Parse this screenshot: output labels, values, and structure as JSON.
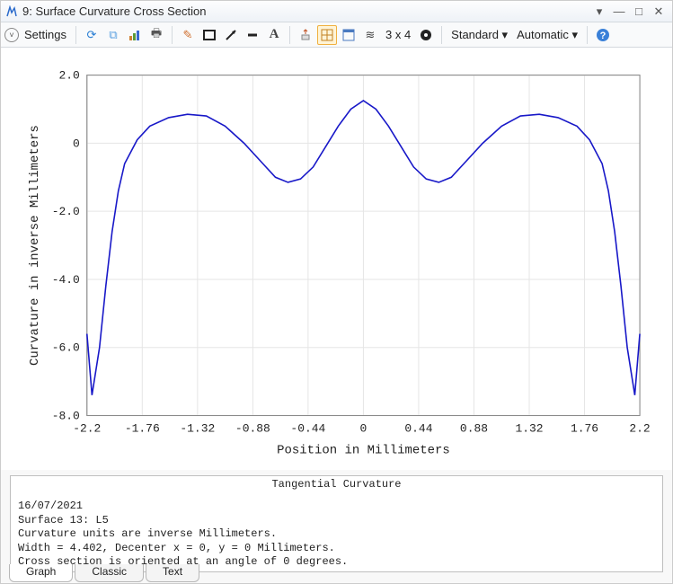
{
  "window": {
    "title": "9: Surface Curvature Cross Section"
  },
  "toolbar": {
    "settings_label": "Settings",
    "grid_label": "3 x 4",
    "dropdown1": "Standard",
    "dropdown2": "Automatic"
  },
  "chart": {
    "type": "line",
    "xlabel": "Position in Millimeters",
    "ylabel": "Curvature in inverse Millimeters",
    "xlim": [
      -2.2,
      2.2
    ],
    "ylim": [
      -8.0,
      2.0
    ],
    "xticks": [
      -2.2,
      -1.76,
      -1.32,
      -0.88,
      -0.44,
      0,
      0.44,
      0.88,
      1.32,
      1.76,
      2.2
    ],
    "xtick_labels": [
      "-2.2",
      "-1.76",
      "-1.32",
      "-0.88",
      "-0.44",
      "0",
      "0.44",
      "0.88",
      "1.32",
      "1.76",
      "2.2"
    ],
    "yticks": [
      2.0,
      0,
      -2.0,
      -4.0,
      -6.0,
      -8.0
    ],
    "ytick_labels": [
      "2.0",
      "0",
      "-2.0",
      "-4.0",
      "-6.0",
      "-8.0"
    ],
    "grid_color": "#e5e5e5",
    "axis_color": "#888888",
    "background_color": "#ffffff",
    "line_color": "#1818c8",
    "line_width": 1.6,
    "label_fontsize": 14,
    "tick_fontsize": 13,
    "data": [
      [
        -2.2,
        -5.6
      ],
      [
        -2.16,
        -7.4
      ],
      [
        -2.1,
        -6.0
      ],
      [
        -2.05,
        -4.2
      ],
      [
        -2.0,
        -2.6
      ],
      [
        -1.95,
        -1.4
      ],
      [
        -1.9,
        -0.6
      ],
      [
        -1.8,
        0.1
      ],
      [
        -1.7,
        0.5
      ],
      [
        -1.55,
        0.75
      ],
      [
        -1.4,
        0.85
      ],
      [
        -1.25,
        0.8
      ],
      [
        -1.1,
        0.5
      ],
      [
        -0.95,
        0.0
      ],
      [
        -0.8,
        -0.6
      ],
      [
        -0.7,
        -1.0
      ],
      [
        -0.6,
        -1.15
      ],
      [
        -0.5,
        -1.05
      ],
      [
        -0.4,
        -0.7
      ],
      [
        -0.3,
        -0.1
      ],
      [
        -0.2,
        0.5
      ],
      [
        -0.1,
        1.0
      ],
      [
        0.0,
        1.25
      ],
      [
        0.1,
        1.0
      ],
      [
        0.2,
        0.5
      ],
      [
        0.3,
        -0.1
      ],
      [
        0.4,
        -0.7
      ],
      [
        0.5,
        -1.05
      ],
      [
        0.6,
        -1.15
      ],
      [
        0.7,
        -1.0
      ],
      [
        0.8,
        -0.6
      ],
      [
        0.95,
        0.0
      ],
      [
        1.1,
        0.5
      ],
      [
        1.25,
        0.8
      ],
      [
        1.4,
        0.85
      ],
      [
        1.55,
        0.75
      ],
      [
        1.7,
        0.5
      ],
      [
        1.8,
        0.1
      ],
      [
        1.9,
        -0.6
      ],
      [
        1.95,
        -1.4
      ],
      [
        2.0,
        -2.6
      ],
      [
        2.05,
        -4.2
      ],
      [
        2.1,
        -6.0
      ],
      [
        2.16,
        -7.4
      ],
      [
        2.2,
        -5.6
      ]
    ]
  },
  "info": {
    "title": "Tangential Curvature",
    "date": "16/07/2021",
    "surface": "Surface 13: L5",
    "units_line": "Curvature units are inverse Millimeters.",
    "width_line": "Width = 4.402, Decenter x = 0, y = 0 Millimeters.",
    "angle_line": "Cross section is oriented at an angle of 0 degrees."
  },
  "tabs": {
    "t1": "Graph",
    "t2": "Classic",
    "t3": "Text"
  }
}
